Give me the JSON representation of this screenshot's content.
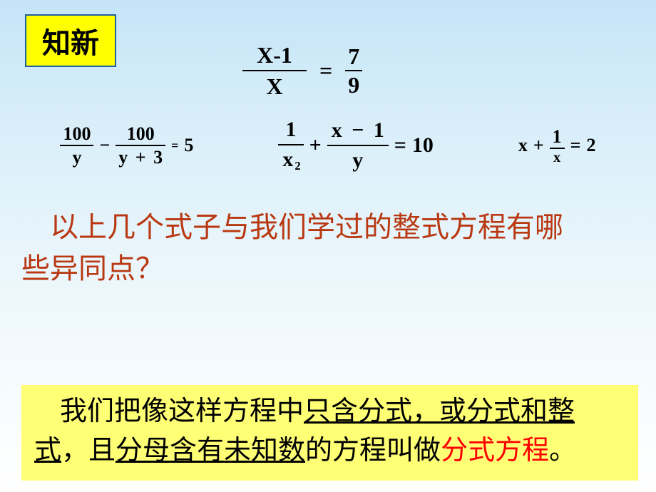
{
  "badge": "知新",
  "eq_top": {
    "left_num": "X-1",
    "left_den": "X",
    "eq": "=",
    "right_num": "7",
    "right_den": "9"
  },
  "eq_row": {
    "eq1": {
      "f1_num": "100",
      "f1_den": "y",
      "minus": "−",
      "f2_num": "100",
      "f2_den_a": "y",
      "f2_den_plus": "+",
      "f2_den_b": "3",
      "eq": "=",
      "rhs": "5"
    },
    "eq2": {
      "f1_num": "1",
      "f1_den_base": "x",
      "f1_den_exp": "2",
      "plus": "+",
      "f2_num_a": "x",
      "f2_num_minus": "−",
      "f2_num_b": "1",
      "f2_den": "y",
      "eq": "=",
      "rhs": "10"
    },
    "eq3": {
      "lhs_x": "x",
      "plus": "+",
      "f_num": "1",
      "f_den": "x",
      "eq": "=",
      "rhs": "2"
    }
  },
  "question": {
    "line1_a": "以上几个式子与我们学过的整式方程有哪",
    "line2": "些异同点？"
  },
  "definition": {
    "t1": "我们把像这样方程中",
    "u1": "只含分式，或分式和整",
    "br": "",
    "u2": "式",
    "t2": "，且",
    "u3": "分母含有未知数",
    "t3": "的方程叫做",
    "red": "分式方程",
    "t4": "。"
  }
}
